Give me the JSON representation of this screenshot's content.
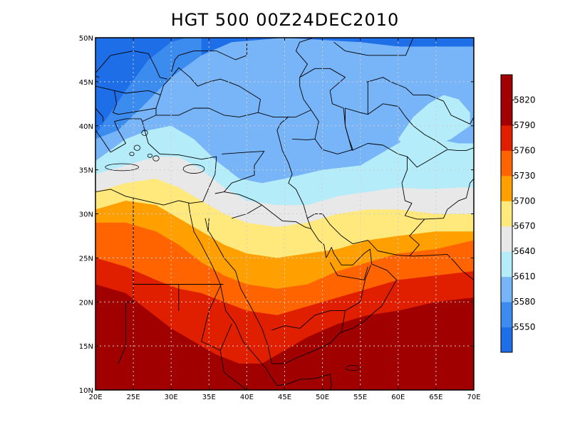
{
  "title": "HGT 500 00Z24DEC2010",
  "map": {
    "lon_range": [
      20,
      70
    ],
    "lat_range": [
      10,
      50
    ],
    "lon_ticks": [
      20,
      25,
      30,
      35,
      40,
      45,
      50,
      55,
      60,
      65,
      70
    ],
    "lon_labels": [
      "20E",
      "25E",
      "30E",
      "35E",
      "40E",
      "45E",
      "50E",
      "55E",
      "60E",
      "65E",
      "70E"
    ],
    "lat_ticks": [
      10,
      15,
      20,
      25,
      30,
      35,
      40,
      45,
      50
    ],
    "lat_labels": [
      "10N",
      "15N",
      "20N",
      "25N",
      "30N",
      "35N",
      "40N",
      "45N",
      "50N"
    ],
    "grid": true
  },
  "colorbar": {
    "labels": [
      "5550",
      "5580",
      "5610",
      "5640",
      "5670",
      "5700",
      "5730",
      "5760",
      "5790",
      "5820"
    ],
    "colors": [
      "#1e6ee8",
      "#3c8cf0",
      "#78b4f8",
      "#b4ecfa",
      "#e8e8e8",
      "#ffe87c",
      "#ffa000",
      "#ff6400",
      "#e01e00",
      "#a00000"
    ]
  },
  "chart_data": {
    "type": "heatmap",
    "levels": [
      5550,
      5580,
      5610,
      5640,
      5670,
      5700,
      5730,
      5760,
      5790,
      5820
    ],
    "colors": [
      "#1e6ee8",
      "#3c8cf0",
      "#78b4f8",
      "#b4ecfa",
      "#e8e8e8",
      "#ffe87c",
      "#ffa000",
      "#ff6400",
      "#e01e00",
      "#a00000"
    ],
    "band_boundaries": [
      {
        "level": 5580,
        "points": [
          [
            20,
            39
          ],
          [
            22,
            41.5
          ],
          [
            24,
            44
          ],
          [
            27,
            47.5
          ],
          [
            30,
            49.5
          ],
          [
            32,
            50
          ]
        ]
      },
      {
        "level": 5610,
        "points": [
          [
            20,
            38.5
          ],
          [
            23,
            39.5
          ],
          [
            26,
            42
          ],
          [
            30,
            45.5
          ],
          [
            34,
            48
          ],
          [
            38,
            49.5
          ],
          [
            45,
            50
          ],
          [
            55,
            49.5
          ],
          [
            60,
            49
          ],
          [
            65,
            49
          ],
          [
            70,
            49
          ]
        ]
      },
      {
        "level": 5640,
        "points": [
          [
            20,
            36
          ],
          [
            24,
            38.5
          ],
          [
            27,
            39.5
          ],
          [
            30,
            40
          ],
          [
            33,
            38.5
          ],
          [
            36,
            36
          ],
          [
            39,
            34
          ],
          [
            42,
            33.5
          ],
          [
            45,
            34
          ],
          [
            50,
            35
          ],
          [
            55,
            35.5
          ],
          [
            58,
            37
          ],
          [
            62,
            39
          ],
          [
            65,
            38.5
          ],
          [
            68,
            38
          ],
          [
            70,
            38
          ]
        ]
      },
      {
        "level": 5670,
        "points": [
          [
            20,
            34.5
          ],
          [
            24,
            35.5
          ],
          [
            28,
            36.5
          ],
          [
            31,
            36.5
          ],
          [
            34,
            35
          ],
          [
            37,
            33
          ],
          [
            40,
            31.5
          ],
          [
            44,
            31
          ],
          [
            48,
            31
          ],
          [
            52,
            32
          ],
          [
            56,
            32.5
          ],
          [
            60,
            33
          ],
          [
            64,
            32.8
          ],
          [
            68,
            33
          ],
          [
            70,
            33
          ]
        ]
      },
      {
        "level": 5700,
        "points": [
          [
            20,
            32.5
          ],
          [
            24,
            33.5
          ],
          [
            28,
            34
          ],
          [
            31,
            33
          ],
          [
            34,
            31.5
          ],
          [
            37,
            30
          ],
          [
            40,
            29
          ],
          [
            44,
            28.5
          ],
          [
            48,
            29
          ],
          [
            52,
            30
          ],
          [
            56,
            30.5
          ],
          [
            60,
            30.5
          ],
          [
            65,
            30
          ],
          [
            70,
            30
          ]
        ]
      },
      {
        "level": 5730,
        "points": [
          [
            20,
            30.5
          ],
          [
            24,
            31.5
          ],
          [
            28,
            31
          ],
          [
            31,
            29.5
          ],
          [
            34,
            28
          ],
          [
            37,
            26.5
          ],
          [
            40,
            25.5
          ],
          [
            44,
            25
          ],
          [
            48,
            25.5
          ],
          [
            52,
            26
          ],
          [
            56,
            27
          ],
          [
            60,
            27.5
          ],
          [
            65,
            28
          ],
          [
            70,
            28
          ]
        ]
      },
      {
        "level": 5760,
        "points": [
          [
            20,
            29
          ],
          [
            24,
            29
          ],
          [
            28,
            28
          ],
          [
            31,
            26.5
          ],
          [
            34,
            24.5
          ],
          [
            37,
            23
          ],
          [
            40,
            22
          ],
          [
            44,
            21.5
          ],
          [
            48,
            22
          ],
          [
            52,
            23.5
          ],
          [
            56,
            24.5
          ],
          [
            60,
            25.5
          ],
          [
            65,
            26
          ],
          [
            70,
            27
          ]
        ]
      },
      {
        "level": 5790,
        "points": [
          [
            20,
            25
          ],
          [
            24,
            24
          ],
          [
            28,
            22.5
          ],
          [
            31,
            21.5
          ],
          [
            34,
            21
          ],
          [
            37,
            20
          ],
          [
            40,
            19
          ],
          [
            44,
            18.5
          ],
          [
            48,
            19.5
          ],
          [
            52,
            20.5
          ],
          [
            56,
            21.5
          ],
          [
            60,
            22.5
          ],
          [
            65,
            23
          ],
          [
            70,
            23.5
          ]
        ]
      },
      {
        "level": 5820,
        "points": [
          [
            20,
            22
          ],
          [
            24,
            21
          ],
          [
            27,
            19
          ],
          [
            30,
            17
          ],
          [
            33,
            15.5
          ],
          [
            36,
            14
          ],
          [
            39,
            13
          ],
          [
            42,
            13
          ],
          [
            45,
            14.5
          ],
          [
            48,
            16
          ],
          [
            52,
            17.5
          ],
          [
            56,
            18.5
          ],
          [
            60,
            19
          ],
          [
            65,
            20
          ],
          [
            70,
            20.5
          ]
        ]
      }
    ],
    "closed_contours": [
      {
        "level": 5640,
        "points": [
          [
            60,
            38.5
          ],
          [
            62,
            41
          ],
          [
            64,
            42.5
          ],
          [
            66,
            43.5
          ],
          [
            68,
            43
          ],
          [
            69.5,
            41.5
          ],
          [
            69.5,
            40
          ],
          [
            67,
            38.5
          ],
          [
            64,
            37.5
          ],
          [
            61,
            37.5
          ]
        ]
      }
    ],
    "xlabel": "",
    "ylabel": ""
  }
}
